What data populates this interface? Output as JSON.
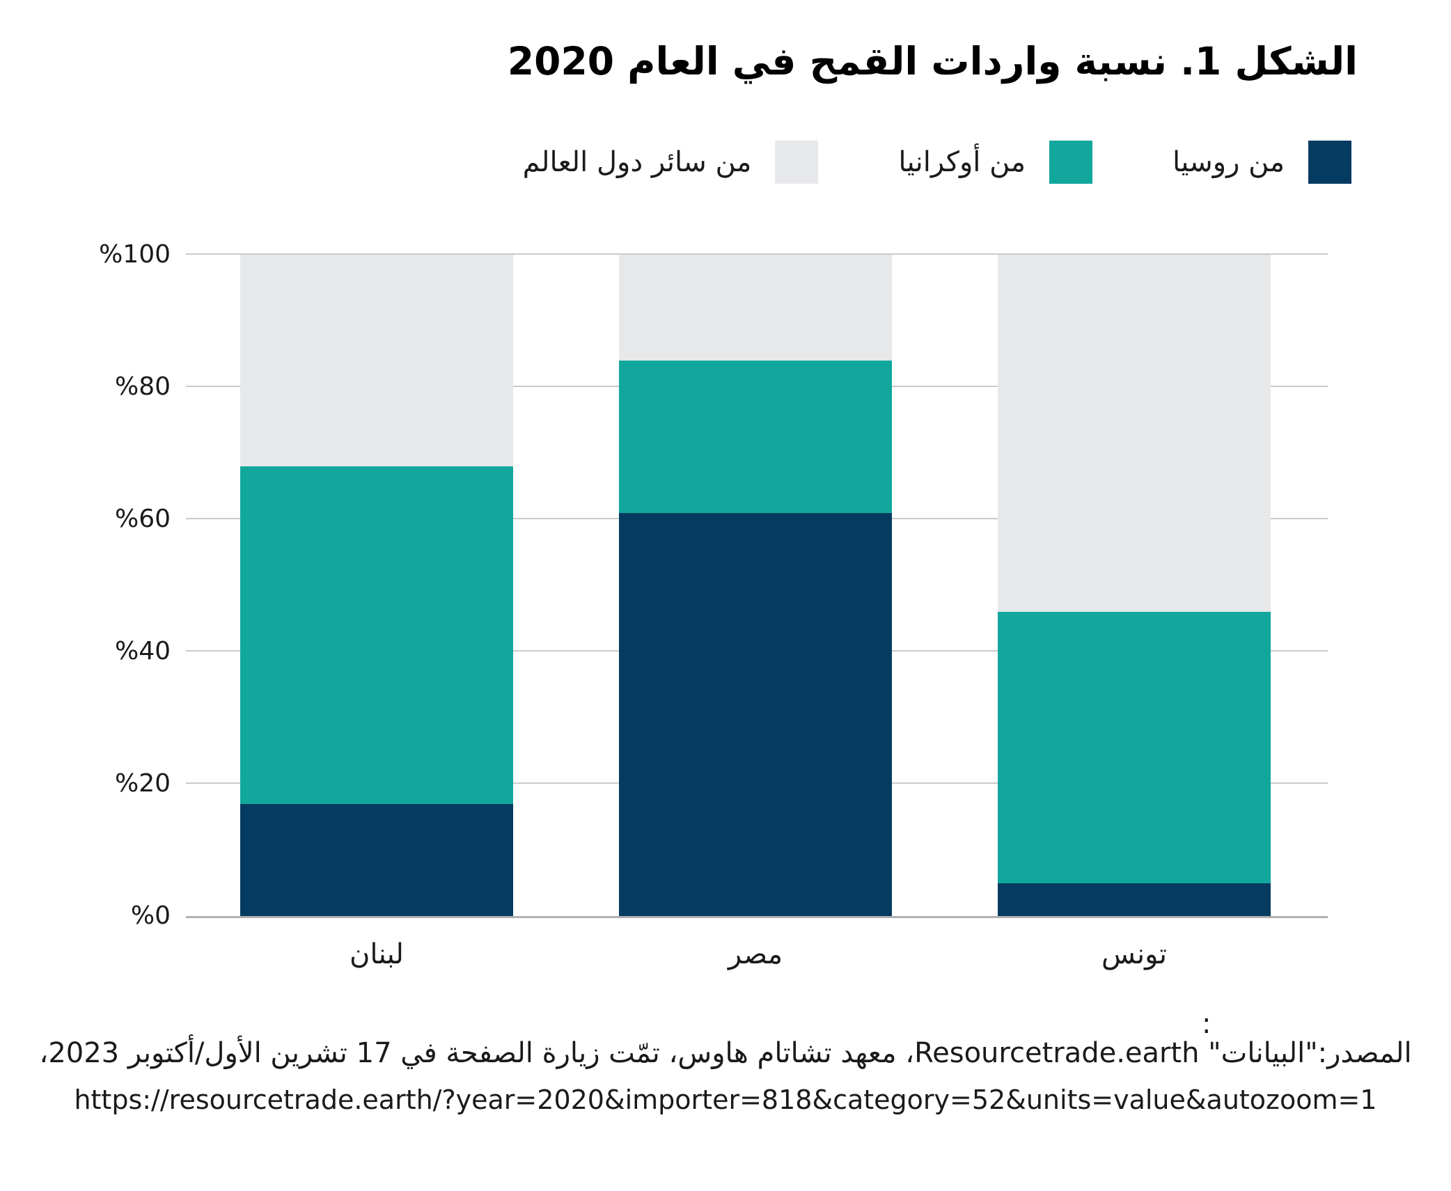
{
  "title": "الشكل 1. نسبة واردات القمح في العام 2020",
  "legend": {
    "items": [
      {
        "key": "russia",
        "label": "من روسيا",
        "color": "#053B61"
      },
      {
        "key": "ukraine",
        "label": "من أوكرانيا",
        "color": "#12A79C"
      },
      {
        "key": "world",
        "label": "من سائر دول العالم",
        "color": "#E7E8EA"
      }
    ]
  },
  "chart_data": {
    "type": "bar",
    "stacked": true,
    "title": "الشكل 1. نسبة واردات القمح في العام 2020",
    "categories": [
      {
        "key": "lebanon",
        "label": "لبنان"
      },
      {
        "key": "egypt",
        "label": "مصر"
      },
      {
        "key": "tunisia",
        "label": "تونس"
      }
    ],
    "series": [
      {
        "key": "russia",
        "name": "من روسيا",
        "color": "#053B61",
        "values": [
          17,
          61,
          5
        ]
      },
      {
        "key": "ukraine",
        "name": "من أوكرانيا",
        "color": "#12A79C",
        "values": [
          51,
          23,
          41
        ]
      },
      {
        "key": "world",
        "name": "من سائر دول العالم",
        "color": "#E7E8EA",
        "values": [
          32,
          16,
          54
        ]
      }
    ],
    "unit": "percent",
    "ylim": [
      0,
      100
    ],
    "yticks": [
      {
        "label": "%0",
        "value": 0
      },
      {
        "label": "%20",
        "value": 20
      },
      {
        "label": "%40",
        "value": 40
      },
      {
        "label": "%60",
        "value": 60
      },
      {
        "label": "%80",
        "value": 80
      },
      {
        "label": "%100",
        "value": 100
      }
    ],
    "grid": true,
    "legend_position": "top"
  },
  "source": {
    "colon": ":",
    "text": "المصدر:\"البيانات\" Resourcetrade.earth، معهد تشاتام هاوس، تمّت زيارة الصفحة في 17 تشرين الأول/أكتوبر 2023،",
    "url": "https://resourcetrade.earth/?year=2020&importer=818&category=52&units=value&autozoom=1"
  },
  "colors": {
    "russia": "#053B61",
    "ukraine": "#12A79C",
    "world": "#E7E8EA",
    "gridline": "#C9CACB",
    "baseline": "#AEB0B2",
    "text": "#1A1A1A",
    "title": "#000000",
    "background": "#FFFFFF"
  }
}
